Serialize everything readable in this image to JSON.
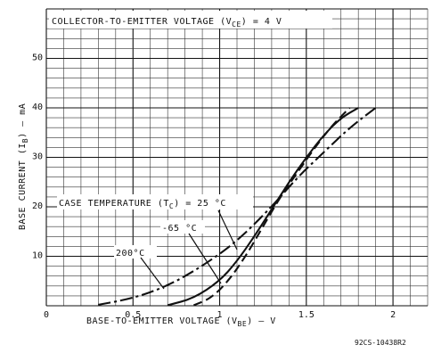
{
  "chart_data": {
    "type": "line",
    "title": "",
    "annotation_top": "COLLECTOR-TO-EMITTER VOLTAGE (V",
    "annotation_top_sub": "CE",
    "annotation_top_value": ") = 4 V",
    "annotation_case_prefix": "CASE TEMPERATURE (T",
    "annotation_case_sub": "C",
    "annotation_case_value": ") = 25 °C",
    "label_minus65": "-65 °C",
    "label_200": "200°C",
    "xlabel_prefix": "BASE-TO-EMITTER VOLTAGE (V",
    "xlabel_sub": "BE",
    "xlabel_suffix": ") — V",
    "ylabel_prefix": "BASE CURRENT (I",
    "ylabel_sub": "B",
    "ylabel_suffix": ") — mA",
    "figure_id": "92CS-10438R2",
    "xlim": [
      0,
      2.2
    ],
    "ylim": [
      0,
      60
    ],
    "x_ticks": [
      "0",
      "0.5",
      "1",
      "1.5",
      "2"
    ],
    "y_ticks": [
      "10",
      "20",
      "30",
      "40",
      "50"
    ],
    "grid": true,
    "series": [
      {
        "style": "dash-dot",
        "x": [
          0.3,
          0.5,
          0.7,
          0.9,
          1.1,
          1.3,
          1.45,
          1.6,
          1.75,
          1.9
        ],
        "y": [
          0.2,
          1.5,
          4.0,
          8.0,
          13.0,
          20.0,
          26.0,
          31.0,
          36.0,
          40.0
        ]
      },
      {
        "style": "solid",
        "x": [
          0.7,
          0.85,
          1.0,
          1.1,
          1.2,
          1.3,
          1.4,
          1.5,
          1.6,
          1.7,
          1.8
        ],
        "y": [
          0.1,
          1.5,
          5.0,
          9.0,
          14.0,
          19.5,
          25.0,
          30.0,
          34.5,
          38.0,
          40.0
        ]
      },
      {
        "style": "dashed",
        "x": [
          0.85,
          0.95,
          1.05,
          1.15,
          1.25,
          1.35,
          1.45,
          1.55,
          1.65,
          1.75
        ],
        "y": [
          0.1,
          1.5,
          5.0,
          10.0,
          16.0,
          22.0,
          27.0,
          32.0,
          36.5,
          40.0
        ]
      }
    ]
  }
}
